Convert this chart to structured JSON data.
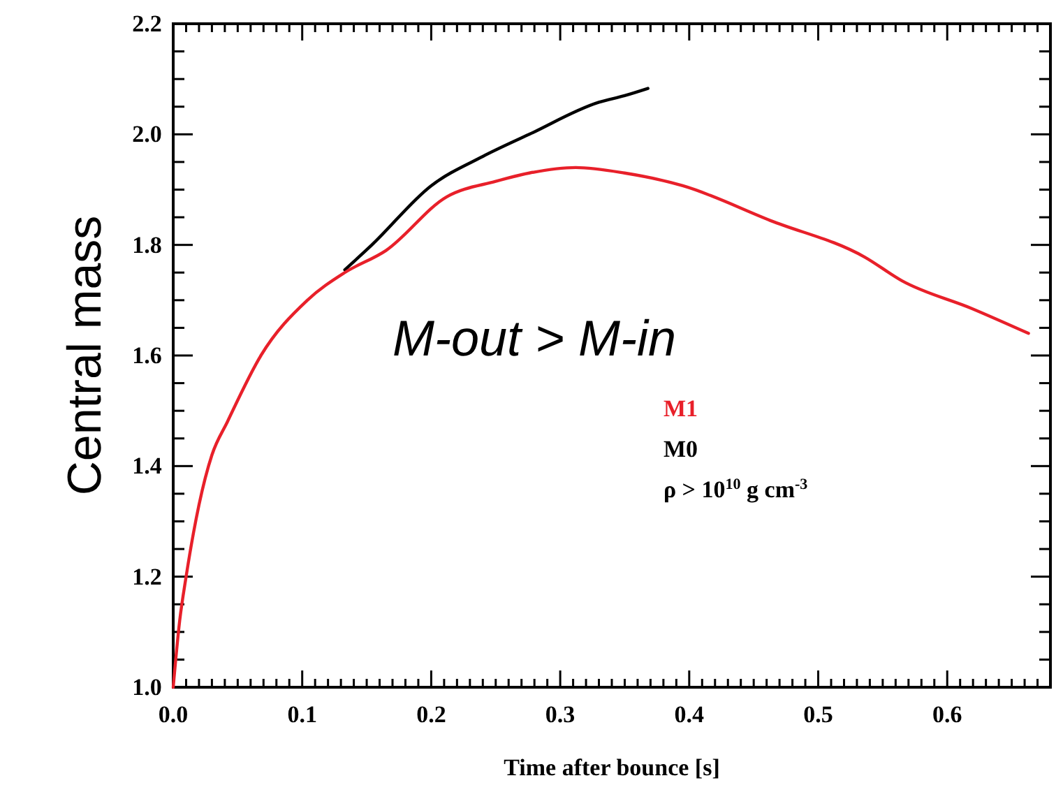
{
  "chart_data": {
    "type": "line",
    "xlabel": "Time after bounce [s]",
    "ylabel": "Central mass",
    "xlim": [
      0,
      0.68
    ],
    "ylim": [
      1.0,
      2.2
    ],
    "xticks": [
      {
        "value": 0,
        "label": "0.0"
      },
      {
        "value": 0.01,
        "label": null
      },
      {
        "value": 0.02,
        "label": null
      },
      {
        "value": 0.03,
        "label": null
      },
      {
        "value": 0.04,
        "label": null
      },
      {
        "value": 0.05,
        "label": null
      },
      {
        "value": 0.06,
        "label": null
      },
      {
        "value": 0.07,
        "label": null
      },
      {
        "value": 0.08,
        "label": null
      },
      {
        "value": 0.09,
        "label": null
      },
      0.1,
      {
        "value": 0.11,
        "label": null
      },
      {
        "value": 0.12,
        "label": null
      },
      {
        "value": 0.13,
        "label": null
      },
      {
        "value": 0.14,
        "label": null
      },
      {
        "value": 0.15,
        "label": null
      },
      {
        "value": 0.16,
        "label": null
      },
      {
        "value": 0.17,
        "label": null
      },
      {
        "value": 0.18,
        "label": null
      },
      {
        "value": 0.19,
        "label": null
      },
      0.2,
      {
        "value": 0.21,
        "label": null
      },
      {
        "value": 0.22,
        "label": null
      },
      {
        "value": 0.23,
        "label": null
      },
      {
        "value": 0.24,
        "label": null
      },
      {
        "value": 0.25,
        "label": null
      },
      {
        "value": 0.26,
        "label": null
      },
      {
        "value": 0.27,
        "label": null
      },
      {
        "value": 0.28,
        "label": null
      },
      {
        "value": 0.29,
        "label": null
      },
      0.3,
      {
        "value": 0.31,
        "label": null
      },
      {
        "value": 0.32,
        "label": null
      },
      {
        "value": 0.33,
        "label": null
      },
      {
        "value": 0.34,
        "label": null
      },
      {
        "value": 0.35,
        "label": null
      },
      {
        "value": 0.36,
        "label": null
      },
      {
        "value": 0.37,
        "label": null
      },
      {
        "value": 0.38,
        "label": null
      },
      {
        "value": 0.39,
        "label": null
      },
      0.4,
      {
        "value": 0.41,
        "label": null
      },
      {
        "value": 0.42,
        "label": null
      },
      {
        "value": 0.43,
        "label": null
      },
      {
        "value": 0.44,
        "label": null
      },
      {
        "value": 0.45,
        "label": null
      },
      {
        "value": 0.46,
        "label": null
      },
      {
        "value": 0.47,
        "label": null
      },
      {
        "value": 0.48,
        "label": null
      },
      {
        "value": 0.49,
        "label": null
      },
      0.5,
      {
        "value": 0.51,
        "label": null
      },
      {
        "value": 0.52,
        "label": null
      },
      {
        "value": 0.53,
        "label": null
      },
      {
        "value": 0.54,
        "label": null
      },
      {
        "value": 0.55,
        "label": null
      },
      {
        "value": 0.56,
        "label": null
      },
      {
        "value": 0.57,
        "label": null
      },
      {
        "value": 0.58,
        "label": null
      },
      {
        "value": 0.59,
        "label": null
      },
      0.6,
      {
        "value": 0.61,
        "label": null
      },
      {
        "value": 0.62,
        "label": null
      },
      {
        "value": 0.63,
        "label": null
      },
      {
        "value": 0.64,
        "label": null
      },
      {
        "value": 0.65,
        "label": null
      },
      {
        "value": 0.66,
        "label": null
      },
      {
        "value": 0.67,
        "label": null
      }
    ],
    "yticks": [
      {
        "value": 1.0,
        "label": "1.0"
      },
      {
        "value": 1.05,
        "label": null
      },
      {
        "value": 1.1,
        "label": null
      },
      {
        "value": 1.15,
        "label": null
      },
      1.2,
      {
        "value": 1.25,
        "label": null
      },
      {
        "value": 1.3,
        "label": null
      },
      {
        "value": 1.35,
        "label": null
      },
      1.4,
      {
        "value": 1.45,
        "label": null
      },
      {
        "value": 1.5,
        "label": null
      },
      {
        "value": 1.55,
        "label": null
      },
      1.6,
      {
        "value": 1.65,
        "label": null
      },
      {
        "value": 1.7,
        "label": null
      },
      {
        "value": 1.75,
        "label": null
      },
      1.8,
      {
        "value": 1.85,
        "label": null
      },
      {
        "value": 1.9,
        "label": null
      },
      {
        "value": 1.95,
        "label": null
      },
      {
        "value": 2.0,
        "label": "2.0"
      },
      {
        "value": 2.05,
        "label": null
      },
      {
        "value": 2.1,
        "label": null
      },
      {
        "value": 2.15,
        "label": null
      },
      2.2
    ],
    "legend": "right",
    "series": [
      {
        "name": "M1",
        "color": "#e8202a",
        "x": [
          0,
          0.005,
          0.01,
          0.02,
          0.03,
          0.042,
          0.068,
          0.104,
          0.133,
          0.165,
          0.212,
          0.25,
          0.276,
          0.312,
          0.35,
          0.395,
          0.463,
          0.536,
          0.565,
          0.619,
          0.663
        ],
        "values": [
          1.0,
          1.12,
          1.2,
          1.33,
          1.42,
          1.48,
          1.6,
          1.7,
          1.75,
          1.79,
          1.887,
          1.915,
          1.93,
          1.94,
          1.93,
          1.907,
          1.844,
          1.778,
          1.735,
          1.685,
          1.64
        ]
      },
      {
        "name": "M0",
        "color": "#000000",
        "x": [
          0.133,
          0.154,
          0.2,
          0.24,
          0.276,
          0.33,
          0.35,
          0.368
        ],
        "values": [
          1.755,
          1.8,
          1.907,
          1.96,
          2.0,
          2.058,
          2.07,
          2.083
        ]
      }
    ],
    "annotations": [
      "M-out > M-in",
      "ρ > 10$^{10}$ g cm$^{-3}$"
    ]
  }
}
